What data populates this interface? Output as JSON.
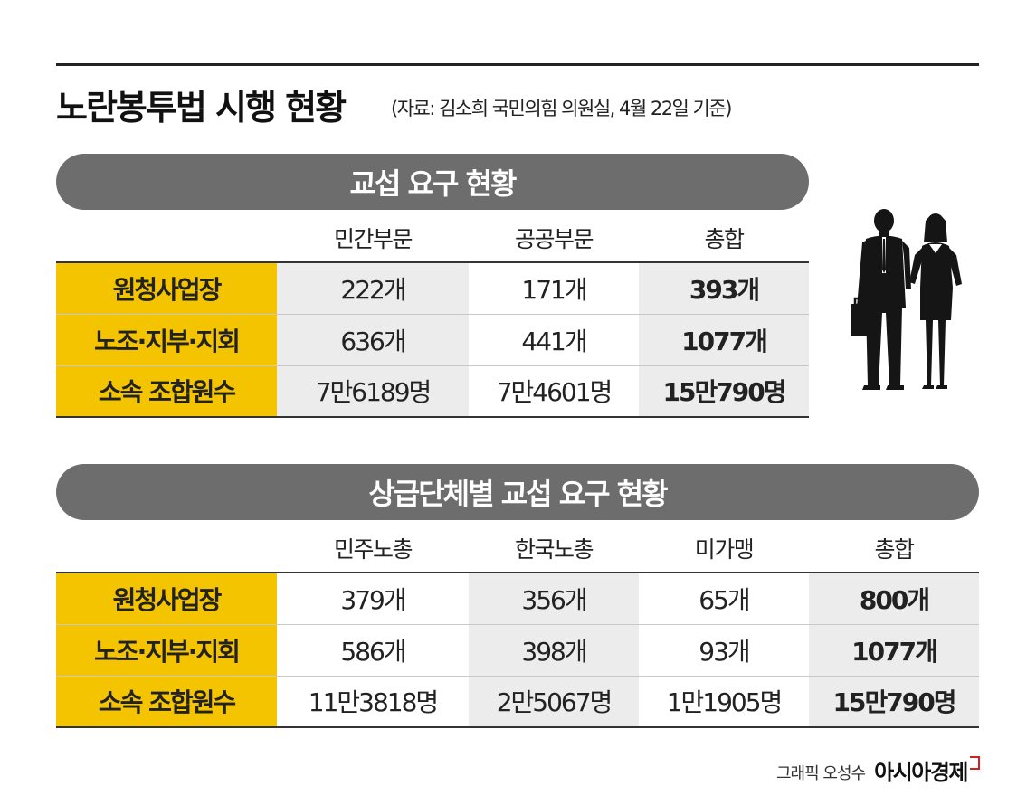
{
  "header": {
    "title": "노란봉투법 시행 현황",
    "source": "(자료: 김소희 국민의힘 의원실, 4월 22일 기준)"
  },
  "colors": {
    "label_bg": "#f4c400",
    "pill_bg": "#6d6d6d",
    "cell_gray": "#ececec"
  },
  "chart_data": [
    {
      "type": "table",
      "title": "교섭 요구 현황",
      "columns": [
        "민간부문",
        "공공부문",
        "총합"
      ],
      "rows": [
        {
          "label": "원청사업장",
          "cells": [
            "222개",
            "171개",
            "393개"
          ]
        },
        {
          "label": "노조·지부·지회",
          "cells": [
            "636개",
            "441개",
            "1077개"
          ]
        },
        {
          "label": "소속 조합원수",
          "cells": [
            "7만6189명",
            "7만4601명",
            "15만790명"
          ]
        }
      ]
    },
    {
      "type": "table",
      "title": "상급단체별 교섭 요구 현황",
      "columns": [
        "민주노총",
        "한국노총",
        "미가맹",
        "총합"
      ],
      "rows": [
        {
          "label": "원청사업장",
          "cells": [
            "379개",
            "356개",
            "65개",
            "800개"
          ]
        },
        {
          "label": "노조·지부·지회",
          "cells": [
            "586개",
            "398개",
            "93개",
            "1077개"
          ]
        },
        {
          "label": "소속 조합원수",
          "cells": [
            "11만3818명",
            "2만5067명",
            "1만1905명",
            "15만790명"
          ]
        }
      ]
    }
  ],
  "illustration": {
    "icon": "business-people-silhouette-icon"
  },
  "credit": {
    "text": "그래픽 오성수",
    "brand": "아시아경제"
  }
}
